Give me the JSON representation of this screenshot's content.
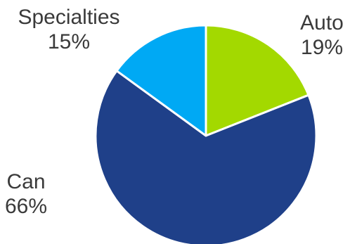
{
  "chart_data": {
    "type": "pie",
    "start_angle_deg": 0,
    "direction": "clockwise",
    "slices": [
      {
        "label": "Auto",
        "value": 19,
        "value_label": "19%",
        "color": "#a3d900"
      },
      {
        "label": "Can",
        "value": 66,
        "value_label": "66%",
        "color": "#1f4089"
      },
      {
        "label": "Specialties",
        "value": 15,
        "value_label": "15%",
        "color": "#00a9f4"
      }
    ],
    "slice_border_color": "#ffffff"
  }
}
